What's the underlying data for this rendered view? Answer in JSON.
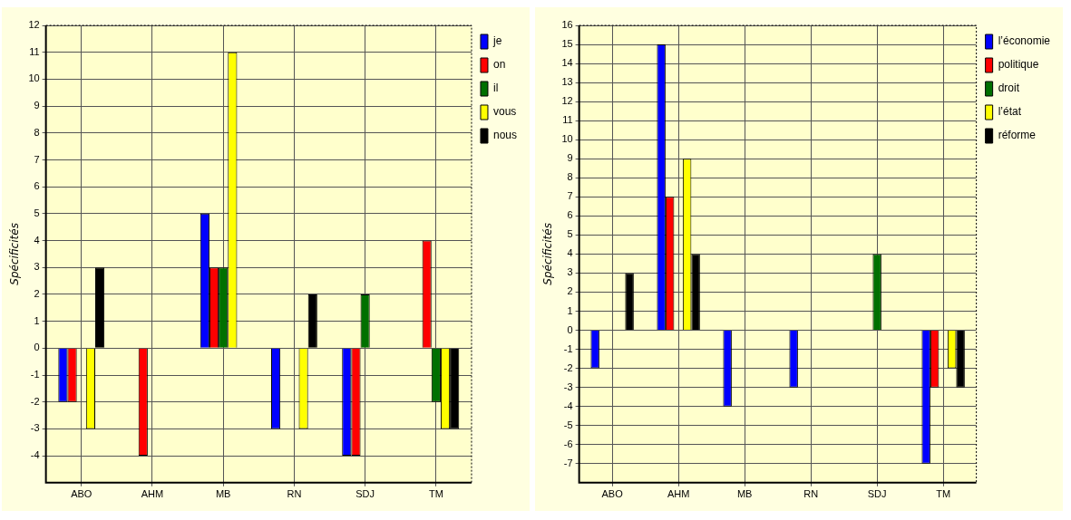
{
  "chart_data": [
    {
      "type": "bar",
      "ylabel": "Spécificités",
      "categories": [
        "ABO",
        "AHM",
        "MB",
        "RN",
        "SDJ",
        "TM"
      ],
      "series": [
        {
          "name": "je",
          "color": "#0000ff",
          "values": [
            -2,
            0,
            5,
            -3,
            -4,
            0
          ]
        },
        {
          "name": "on",
          "color": "#ff0000",
          "values": [
            -2,
            -4,
            3,
            0,
            -4,
            4
          ]
        },
        {
          "name": "il",
          "color": "#007000",
          "values": [
            0,
            0,
            3,
            0,
            2,
            -2
          ]
        },
        {
          "name": "vous",
          "color": "#ffff00",
          "values": [
            -3,
            0,
            11,
            -3,
            0,
            -3
          ]
        },
        {
          "name": "nous",
          "color": "#000000",
          "values": [
            3,
            0,
            0,
            2,
            0,
            -3
          ]
        }
      ],
      "ylim": [
        -5,
        12
      ],
      "yticks": [
        -4,
        -3,
        -2,
        -1,
        0,
        1,
        2,
        3,
        4,
        5,
        6,
        7,
        8,
        9,
        10,
        11,
        12
      ],
      "grid": true,
      "legend": "top right"
    },
    {
      "type": "bar",
      "ylabel": "Spécificités",
      "categories": [
        "ABO",
        "AHM",
        "MB",
        "RN",
        "SDJ",
        "TM"
      ],
      "series": [
        {
          "name": "l’économie",
          "color": "#0000ff",
          "values": [
            -2,
            15,
            -4,
            -3,
            0,
            -7
          ]
        },
        {
          "name": "politique",
          "color": "#ff0000",
          "values": [
            0,
            7,
            0,
            0,
            0,
            -3
          ]
        },
        {
          "name": "droit",
          "color": "#007000",
          "values": [
            0,
            0,
            0,
            0,
            4,
            0
          ]
        },
        {
          "name": "l’état",
          "color": "#ffff00",
          "values": [
            0,
            9,
            0,
            0,
            0,
            -2
          ]
        },
        {
          "name": "réforme",
          "color": "#000000",
          "values": [
            3,
            4,
            0,
            0,
            0,
            -3
          ]
        }
      ],
      "ylim": [
        -8,
        16
      ],
      "yticks": [
        -7,
        -6,
        -5,
        -4,
        -3,
        -2,
        -1,
        0,
        1,
        2,
        3,
        4,
        5,
        6,
        7,
        8,
        9,
        10,
        11,
        12,
        13,
        14,
        15,
        16
      ],
      "grid": true,
      "legend": "top right"
    }
  ]
}
